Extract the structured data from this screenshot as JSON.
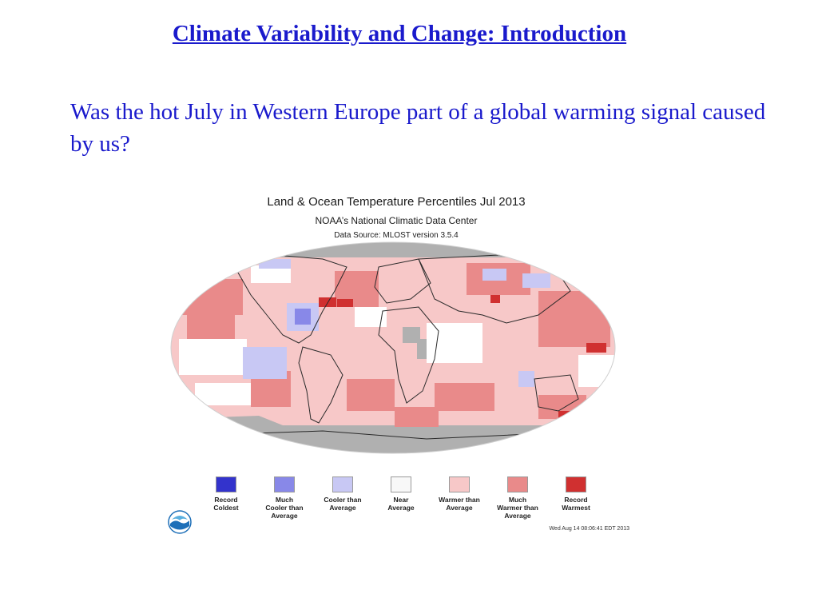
{
  "slide": {
    "title": "Climate Variability and Change: Introduction",
    "question": "Was the hot July in Western Europe part of a global warming signal caused by us?"
  },
  "figure": {
    "title": "Land & Ocean Temperature Percentiles Jul 2013",
    "subtitle": "NOAA’s National Climatic Data Center",
    "source": "Data Source: MLOST version 3.5.4",
    "timestamp": "Wed Aug 14 08:06:41 EDT 2013",
    "logo_icon": "noaa-logo-icon",
    "colors": {
      "record_coldest": "#3333cc",
      "much_cooler": "#8888e8",
      "cooler": "#c8c8f4",
      "near_average": "#ffffff",
      "warmer": "#f7c8c8",
      "much_warmer": "#e98a8a",
      "record_warmest": "#d03030",
      "no_data": "#b0b0b0"
    },
    "legend": [
      {
        "label": "Record\nColdest",
        "color": "#3333cc"
      },
      {
        "label": "Much\nCooler than\nAverage",
        "color": "#8888e8"
      },
      {
        "label": "Cooler than\nAverage",
        "color": "#c8c8f4"
      },
      {
        "label": "Near\nAverage",
        "color": "#f8f8f8"
      },
      {
        "label": "Warmer than\nAverage",
        "color": "#f7c8c8"
      },
      {
        "label": "Much\nWarmer than\nAverage",
        "color": "#e98a8a"
      },
      {
        "label": "Record\nWarmest",
        "color": "#d03030"
      }
    ]
  }
}
